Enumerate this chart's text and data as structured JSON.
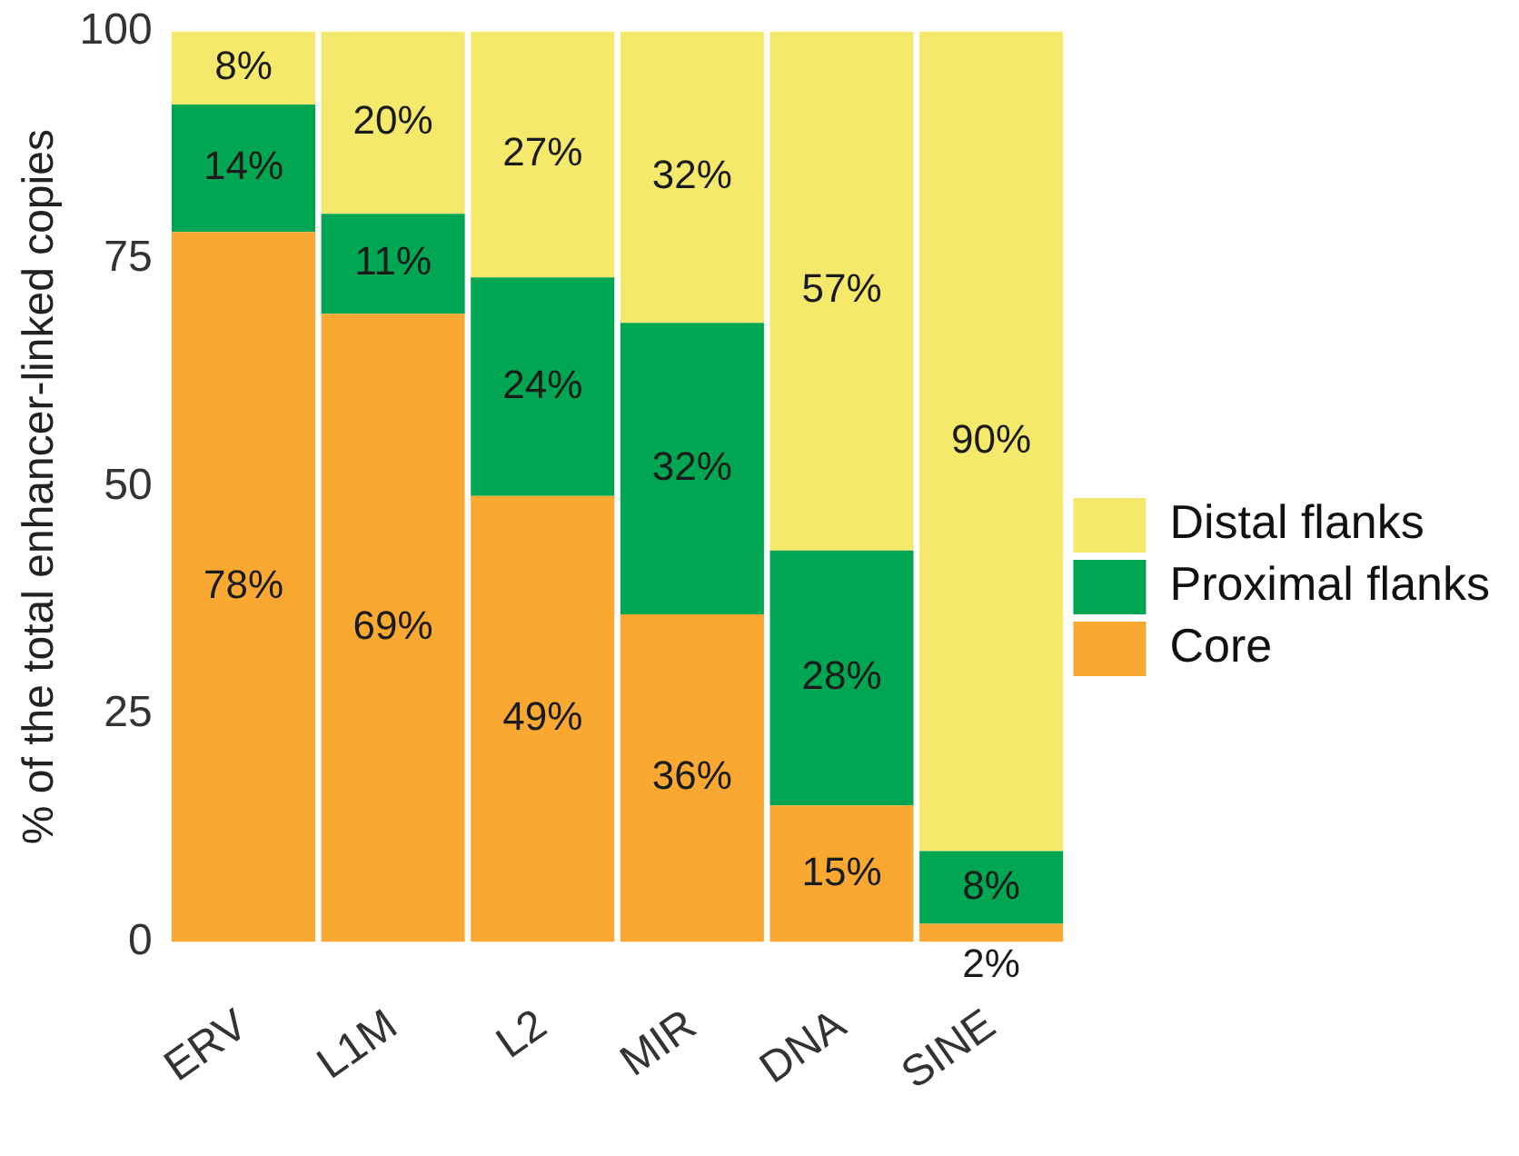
{
  "chart_data": {
    "type": "bar",
    "stacked": true,
    "ylabel": "% of the total enhancer-linked copies",
    "categories": [
      "ERV",
      "L1M",
      "L2",
      "MIR",
      "DNA",
      "SINE"
    ],
    "ylim": [
      0,
      100
    ],
    "yticks": [
      0,
      25,
      50,
      75,
      100
    ],
    "grid": false,
    "legend": "right",
    "series": [
      {
        "name": "Core",
        "color": "#f9a832",
        "values": [
          78,
          69,
          49,
          36,
          15,
          2
        ],
        "value_labels": [
          "78%",
          "69%",
          "49%",
          "36%",
          "15%",
          "2%"
        ]
      },
      {
        "name": "Proximal flanks",
        "color": "#00a651",
        "values": [
          14,
          11,
          24,
          32,
          28,
          8
        ],
        "value_labels": [
          "14%",
          "11%",
          "24%",
          "32%",
          "28%",
          "8%"
        ]
      },
      {
        "name": "Distal flanks",
        "color": "#f5e96b",
        "values": [
          8,
          20,
          27,
          32,
          57,
          90
        ],
        "value_labels": [
          "8%",
          "20%",
          "27%",
          "32%",
          "57%",
          "90%"
        ]
      }
    ]
  }
}
